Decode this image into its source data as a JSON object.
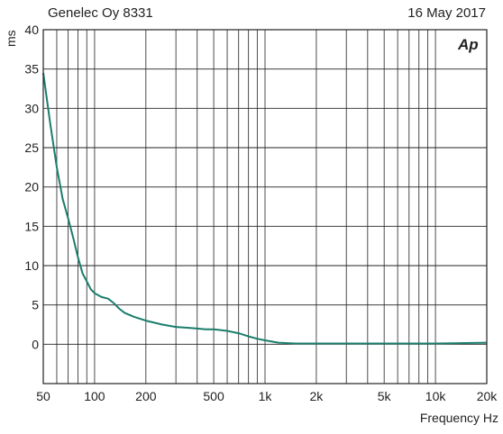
{
  "header": {
    "left": "Genelec Oy 8331",
    "right": "16 May 2017",
    "logo_text": "Ap"
  },
  "chart_data": {
    "type": "line",
    "title": "Genelec Oy 8331",
    "date": "16 May 2017",
    "xlabel": "Frequency Hz",
    "ylabel": "ms",
    "xscale": "log",
    "xlim": [
      50,
      20000
    ],
    "ylim": [
      -5,
      40
    ],
    "grid": true,
    "line_color": "#1a7d6c",
    "x_ticks": [
      50,
      100,
      200,
      500,
      1000,
      2000,
      5000,
      10000,
      20000
    ],
    "x_tick_labels": [
      "50",
      "100",
      "200",
      "500",
      "1k",
      "2k",
      "5k",
      "10k",
      "20k"
    ],
    "y_ticks": [
      0,
      5,
      10,
      15,
      20,
      25,
      30,
      35,
      40
    ],
    "y_tick_labels": [
      "0",
      "5",
      "10",
      "15",
      "20",
      "25",
      "30",
      "35",
      "40"
    ],
    "series": [
      {
        "x": [
          50,
          55,
          60,
          65,
          70,
          75,
          80,
          85,
          90,
          95,
          100,
          110,
          120,
          130,
          140,
          150,
          170,
          200,
          250,
          300,
          350,
          400,
          450,
          500,
          550,
          600,
          700,
          800,
          900,
          1000,
          1200,
          1500,
          2000,
          3000,
          5000,
          10000,
          20000
        ],
        "y": [
          34.5,
          28,
          22.5,
          18.5,
          16,
          13.5,
          11,
          9,
          8,
          7,
          6.5,
          6,
          5.8,
          5.2,
          4.5,
          4,
          3.5,
          3,
          2.5,
          2.2,
          2.1,
          2.0,
          1.9,
          1.9,
          1.8,
          1.7,
          1.4,
          1.0,
          0.7,
          0.5,
          0.2,
          0.1,
          0.1,
          0.1,
          0.1,
          0.1,
          0.2
        ]
      }
    ]
  }
}
